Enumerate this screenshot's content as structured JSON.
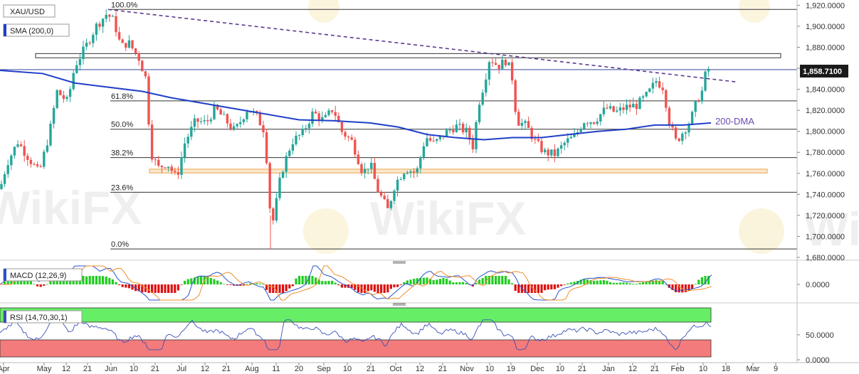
{
  "chart_data": {
    "type": "candlestick",
    "symbol": "XAU/USD",
    "indicators": {
      "sma_label": "SMA (200,0)",
      "macd_label": "MACD (12,26,9)",
      "rsi_label": "RSI (14,70,30,1)"
    },
    "annotation_200dma": "200-DMA",
    "current_price": 1858.71,
    "current_price_label": "1,858.7100",
    "y_axis": {
      "range": [
        1680,
        1925
      ],
      "ticks": [
        "1,920.0000",
        "1,900.0000",
        "1,880.0000",
        "1,860.0000",
        "1,840.0000",
        "1,820.0000",
        "1,800.0000",
        "1,780.0000",
        "1,760.0000",
        "1,740.0000",
        "1,720.0000",
        "1,700.0000",
        "1,680.0000"
      ],
      "tick_values": [
        1920,
        1900,
        1880,
        1860,
        1840,
        1820,
        1800,
        1780,
        1760,
        1740,
        1720,
        1700,
        1680
      ]
    },
    "macd_axis": {
      "ticks": [
        "0.0000"
      ]
    },
    "rsi_axis": {
      "ticks": [
        "50.0000",
        "0.0000"
      ]
    },
    "x_axis": {
      "labels": [
        "Apr",
        "May",
        "12",
        "21",
        "Jun",
        "10",
        "21",
        "Jul",
        "12",
        "21",
        "Aug",
        "11",
        "20",
        "Sep",
        "10",
        "21",
        "Oct",
        "12",
        "21",
        "Nov",
        "10",
        "19",
        "Dec",
        "10",
        "21",
        "Jan",
        "12",
        "21",
        "Feb",
        "10",
        "18",
        "Mar",
        "9"
      ]
    },
    "fibonacci": [
      {
        "label": "100.0%",
        "value": 1916
      },
      {
        "label": "61.8%",
        "value": 1829
      },
      {
        "label": "50.0%",
        "value": 1802
      },
      {
        "label": "38.2%",
        "value": 1775
      },
      {
        "label": "23.6%",
        "value": 1742
      },
      {
        "label": "0.0%",
        "value": 1688
      }
    ],
    "resistance_zone": [
      1870,
      1874
    ],
    "support_zone": [
      1761,
      1764
    ],
    "trendline": {
      "from": 1916,
      "to": 1847
    },
    "colors": {
      "up": "#26a69a",
      "down": "#ef5350",
      "sma": "#1f3fc8",
      "trendline": "#5b3a8e",
      "macd": "#2b53c9",
      "signal": "#f28c28",
      "rsi_line": "#3a4fb5",
      "rsi_over": "#66ee66",
      "rsi_under": "#f47b7b",
      "support": "#f0c080"
    }
  },
  "watermark": "WikiFX"
}
